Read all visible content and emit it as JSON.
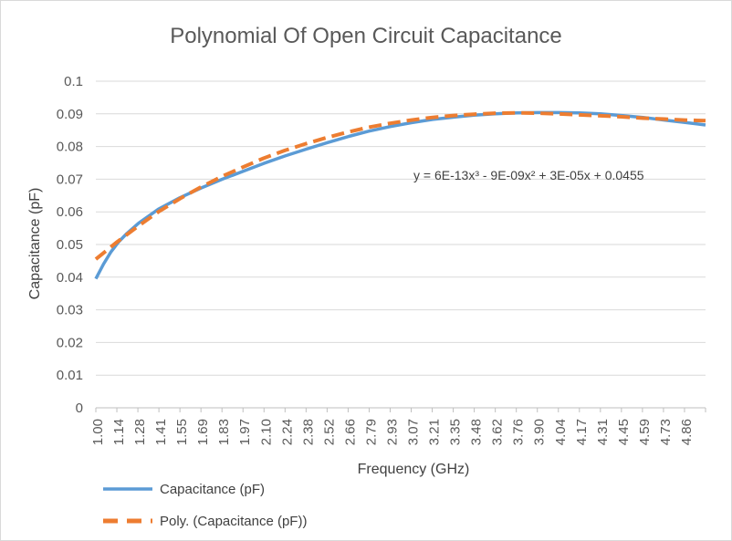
{
  "chart_data": {
    "type": "line",
    "title": "Polynomial Of Open Circuit Capacitance",
    "xlabel": "Frequency (GHz)",
    "ylabel": "Capacitance (pF)",
    "xlim": [
      1.0,
      5.0
    ],
    "ylim": [
      0,
      0.1
    ],
    "y_ticks": [
      "0",
      "0.01",
      "0.02",
      "0.03",
      "0.04",
      "0.05",
      "0.06",
      "0.07",
      "0.08",
      "0.09",
      "0.1"
    ],
    "x_ticks": [
      "1.00",
      "1.14",
      "1.28",
      "1.41",
      "1.55",
      "1.69",
      "1.83",
      "1.97",
      "2.10",
      "2.24",
      "2.38",
      "2.52",
      "2.66",
      "2.79",
      "2.93",
      "3.07",
      "3.21",
      "3.35",
      "3.48",
      "3.62",
      "3.76",
      "3.90",
      "4.04",
      "4.17",
      "4.31",
      "4.45",
      "4.59",
      "4.73",
      "4.86"
    ],
    "grid": true,
    "legend_position": "bottom-left",
    "trendline_equation": "y = 6E-13x³ - 9E-09x² + 3E-05x + 0.0455",
    "series": [
      {
        "name": "Capacitance (pF)",
        "style": "solid",
        "color": "#5b9bd5",
        "x": [
          1.0,
          1.05,
          1.1,
          1.15,
          1.2,
          1.28,
          1.41,
          1.55,
          1.69,
          1.83,
          1.97,
          2.1,
          2.24,
          2.38,
          2.52,
          2.66,
          2.79,
          2.93,
          3.07,
          3.21,
          3.35,
          3.48,
          3.62,
          3.76,
          3.9,
          4.04,
          4.17,
          4.31,
          4.45,
          4.59,
          4.73,
          4.86,
          5.0
        ],
        "y": [
          0.0395,
          0.044,
          0.0478,
          0.0508,
          0.0532,
          0.0565,
          0.0608,
          0.0643,
          0.0673,
          0.07,
          0.0725,
          0.0748,
          0.0771,
          0.0792,
          0.0812,
          0.0831,
          0.0847,
          0.0861,
          0.0873,
          0.0883,
          0.089,
          0.0896,
          0.09,
          0.0903,
          0.0904,
          0.0904,
          0.0903,
          0.09,
          0.0895,
          0.0889,
          0.0881,
          0.0874,
          0.0866
        ]
      },
      {
        "name": "Poly. (Capacitance (pF))",
        "style": "dashed",
        "color": "#ed7d31",
        "x": [
          1.0,
          1.14,
          1.28,
          1.41,
          1.55,
          1.69,
          1.83,
          1.97,
          2.1,
          2.24,
          2.38,
          2.52,
          2.66,
          2.79,
          2.93,
          3.07,
          3.21,
          3.35,
          3.48,
          3.62,
          3.76,
          3.9,
          4.04,
          4.17,
          4.31,
          4.45,
          4.59,
          4.73,
          4.86,
          5.0
        ],
        "y": [
          0.0455,
          0.0508,
          0.0557,
          0.06,
          0.064,
          0.0676,
          0.0709,
          0.0738,
          0.0764,
          0.0788,
          0.0809,
          0.0828,
          0.0845,
          0.0859,
          0.0871,
          0.0881,
          0.0889,
          0.0895,
          0.0899,
          0.0902,
          0.0903,
          0.0902,
          0.09,
          0.0897,
          0.0894,
          0.0891,
          0.0887,
          0.0884,
          0.0881,
          0.0879
        ]
      }
    ]
  }
}
